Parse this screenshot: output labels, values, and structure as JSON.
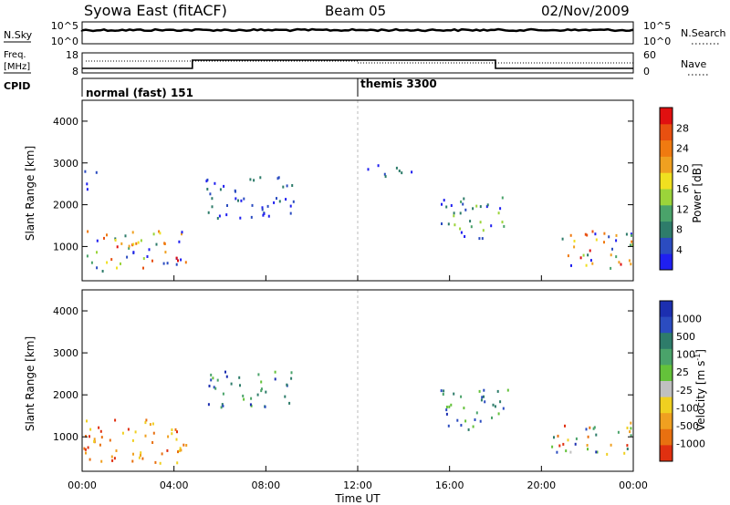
{
  "header": {
    "station": "Syowa East (fitACF)",
    "beam": "Beam 05",
    "date": "02/Nov/2009"
  },
  "top_panels": {
    "nsky_label": "N.Sky",
    "nsky_ticks": [
      "10^5",
      "10^0"
    ],
    "nsearch_label": "N.Search",
    "nsearch_ticks": [
      "10^5",
      "10^0"
    ],
    "freq_label_line1": "Freq.",
    "freq_label_line2": "[MHz]",
    "freq_ticks": [
      "18",
      "8"
    ],
    "nave_label": "Nave",
    "nave_ticks": [
      "60",
      "0"
    ],
    "cpid_label": "CPID",
    "cpid_segments": [
      {
        "name": "normal (fast) 151",
        "start_hour": 0,
        "end_hour": 12
      },
      {
        "name": "themis 3300",
        "start_hour": 12,
        "end_hour": 24
      }
    ]
  },
  "axes": {
    "xlabel": "Time UT",
    "x_ticks": [
      "00:00",
      "04:00",
      "08:00",
      "12:00",
      "16:00",
      "20:00",
      "00:00"
    ],
    "ylabel": "Slant Range [km]",
    "y_ticks": [
      "1000",
      "2000",
      "3000",
      "4000"
    ]
  },
  "power_colorbar": {
    "label": "Power [dB]",
    "ticks": [
      "4",
      "8",
      "12",
      "16",
      "20",
      "24",
      "28"
    ],
    "colors": [
      "#1f1ff0",
      "#2b4cc0",
      "#2e7c6a",
      "#4aa36a",
      "#9bd43a",
      "#f0e020",
      "#f0a020",
      "#f07a10",
      "#e85010",
      "#e01010"
    ]
  },
  "velocity_colorbar": {
    "label": "Velocity [m s",
    "label_sup": "-1",
    "label_end": "]",
    "ticks": [
      "1000",
      "500",
      "100",
      "25",
      "-25",
      "-100",
      "-500",
      "-1000"
    ],
    "colors": [
      "#1c2fb0",
      "#2b4cc0",
      "#2e7c6a",
      "#4aa36a",
      "#64c23a",
      "#c0c0c0",
      "#f0d020",
      "#f0a020",
      "#e87010",
      "#e03010"
    ]
  },
  "chart_data": {
    "type": "heatmap",
    "x_range_hours": [
      0,
      24
    ],
    "y_range_km": [
      180,
      4500
    ],
    "gridlines": false,
    "scatter_regions_power": [
      {
        "t0": 0.0,
        "t1": 4.6,
        "r0": 400,
        "r1": 1400,
        "level": "high"
      },
      {
        "t0": 0.0,
        "t1": 0.6,
        "r0": 2400,
        "r1": 2900,
        "level": "low"
      },
      {
        "t0": 5.2,
        "t1": 9.2,
        "r0": 1700,
        "r1": 2700,
        "level": "low"
      },
      {
        "t0": 12.2,
        "t1": 14.4,
        "r0": 2700,
        "r1": 3000,
        "level": "low"
      },
      {
        "t0": 15.6,
        "t1": 18.6,
        "r0": 1200,
        "r1": 2200,
        "level": "mid"
      },
      {
        "t0": 20.4,
        "t1": 24.0,
        "r0": 500,
        "r1": 1400,
        "level": "high"
      }
    ],
    "scatter_regions_velocity": [
      {
        "t0": 0.0,
        "t1": 4.6,
        "r0": 400,
        "r1": 1500,
        "level": "negative"
      },
      {
        "t0": 5.4,
        "t1": 9.2,
        "r0": 1700,
        "r1": 2600,
        "level": "positive"
      },
      {
        "t0": 15.6,
        "t1": 18.6,
        "r0": 1200,
        "r1": 2200,
        "level": "positive"
      },
      {
        "t0": 20.4,
        "t1": 24.0,
        "r0": 600,
        "r1": 1400,
        "level": "mixed"
      }
    ]
  }
}
